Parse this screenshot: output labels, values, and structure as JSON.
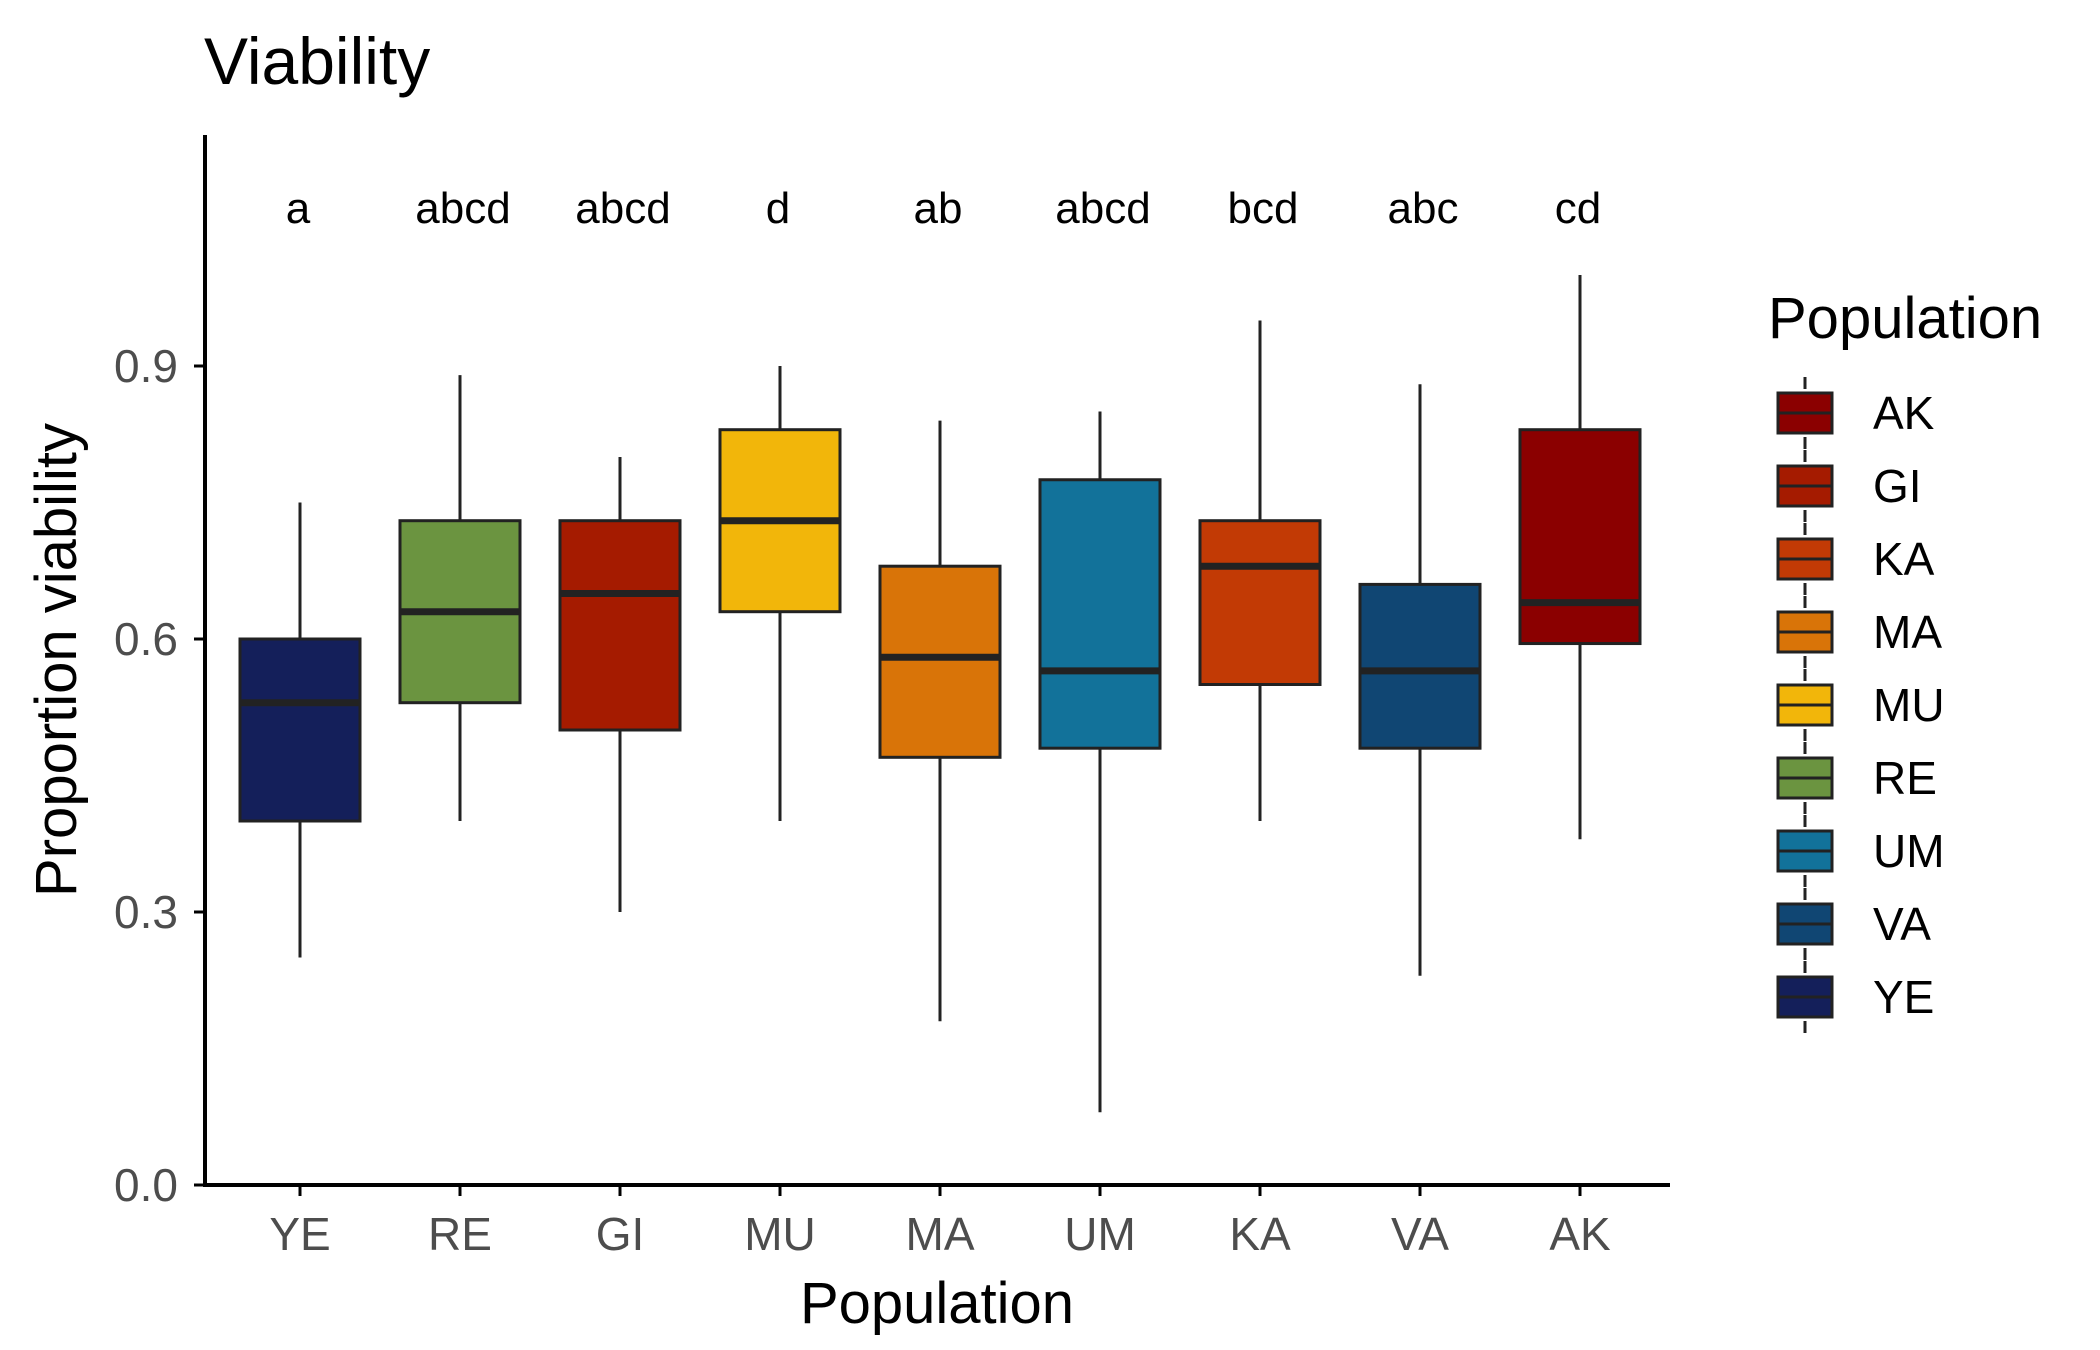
{
  "chart_data": {
    "type": "boxplot",
    "title": "Viability",
    "xlabel": "Population",
    "ylabel": "Proportion viability",
    "ylim": [
      0.0,
      1.12
    ],
    "yticks": [
      0.0,
      0.3,
      0.6,
      0.9
    ],
    "ytick_labels": [
      "0.0",
      "0.3",
      "0.6",
      "0.9"
    ],
    "grid": false,
    "legend": {
      "title": "Population",
      "position": "right",
      "entries": [
        {
          "label": "AK",
          "color": "#8B0000"
        },
        {
          "label": "GI",
          "color": "#A51B00"
        },
        {
          "label": "KA",
          "color": "#C23A05"
        },
        {
          "label": "MA",
          "color": "#D97408"
        },
        {
          "label": "MU",
          "color": "#F2B60A"
        },
        {
          "label": "RE",
          "color": "#6B9440"
        },
        {
          "label": "UM",
          "color": "#12729A"
        },
        {
          "label": "VA",
          "color": "#104673"
        },
        {
          "label": "YE",
          "color": "#141F5A"
        }
      ]
    },
    "boxes": [
      {
        "category": "YE",
        "whisker_low": 0.25,
        "q1": 0.4,
        "median": 0.53,
        "q3": 0.6,
        "whisker_high": 0.75,
        "letters": "a",
        "color": "#141F5A"
      },
      {
        "category": "RE",
        "whisker_low": 0.4,
        "q1": 0.53,
        "median": 0.63,
        "q3": 0.73,
        "whisker_high": 0.89,
        "letters": "abcd",
        "color": "#6B9440"
      },
      {
        "category": "GI",
        "whisker_low": 0.3,
        "q1": 0.5,
        "median": 0.65,
        "q3": 0.73,
        "whisker_high": 0.8,
        "letters": "abcd",
        "color": "#A51B00"
      },
      {
        "category": "MU",
        "whisker_low": 0.4,
        "q1": 0.63,
        "median": 0.73,
        "q3": 0.83,
        "whisker_high": 0.9,
        "letters": "d",
        "color": "#F2B60A"
      },
      {
        "category": "MA",
        "whisker_low": 0.18,
        "q1": 0.47,
        "median": 0.58,
        "q3": 0.68,
        "whisker_high": 0.84,
        "letters": "ab",
        "color": "#D97408"
      },
      {
        "category": "UM",
        "whisker_low": 0.08,
        "q1": 0.48,
        "median": 0.565,
        "q3": 0.775,
        "whisker_high": 0.85,
        "letters": "abcd",
        "color": "#12729A"
      },
      {
        "category": "KA",
        "whisker_low": 0.4,
        "q1": 0.55,
        "median": 0.68,
        "q3": 0.73,
        "whisker_high": 0.95,
        "letters": "bcd",
        "color": "#C23A05"
      },
      {
        "category": "VA",
        "whisker_low": 0.23,
        "q1": 0.48,
        "median": 0.565,
        "q3": 0.66,
        "whisker_high": 0.88,
        "letters": "abc",
        "color": "#104673"
      },
      {
        "category": "AK",
        "whisker_low": 0.38,
        "q1": 0.595,
        "median": 0.64,
        "q3": 0.83,
        "whisker_high": 1.0,
        "letters": "cd",
        "color": "#8B0000"
      }
    ]
  }
}
